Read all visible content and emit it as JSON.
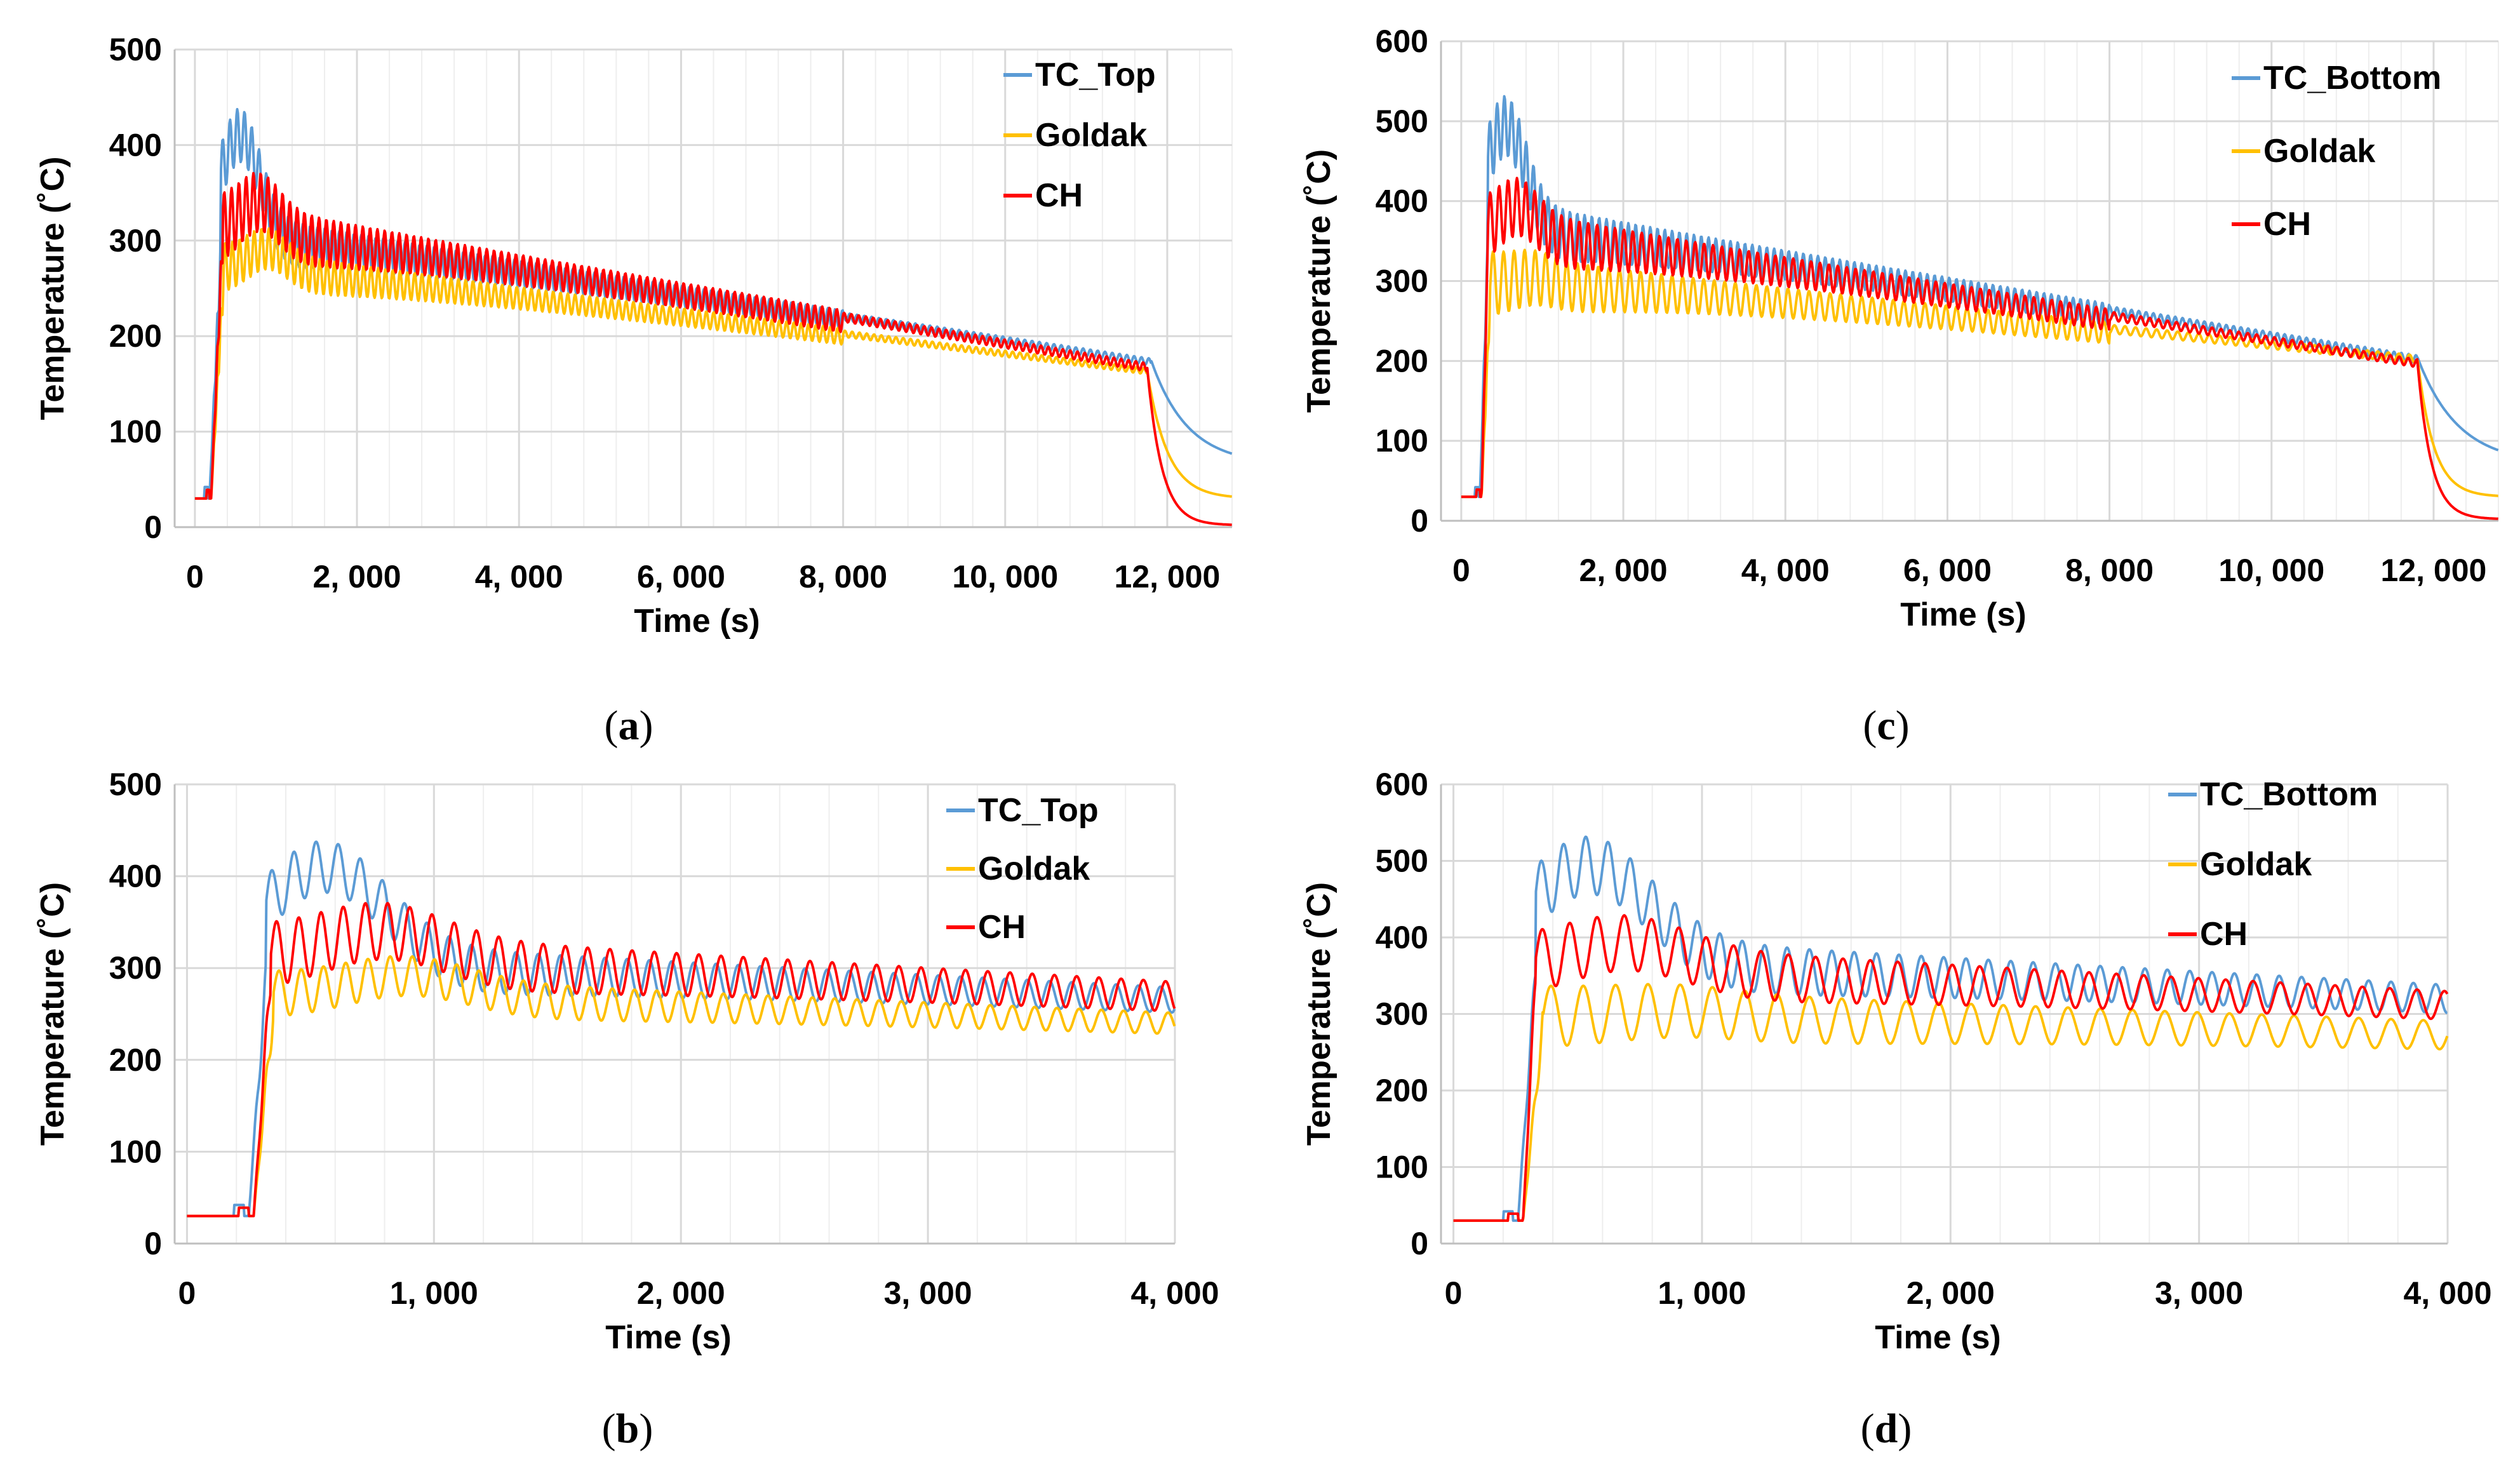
{
  "colors": {
    "tc": "#5b9bd5",
    "goldak": "#ffc000",
    "ch": "#ff0000",
    "grid": "#d9d9d9",
    "minor_grid": "#eeeeee"
  },
  "captions": [
    {
      "open": "(",
      "letter": "a",
      "close": ")"
    },
    {
      "open": "(",
      "letter": "c",
      "close": ")"
    },
    {
      "open": "(",
      "letter": "b",
      "close": ")"
    },
    {
      "open": "(",
      "letter": "d",
      "close": ")"
    }
  ],
  "chart_data": [
    {
      "id": "a",
      "type": "line",
      "xlabel": "Time (s)",
      "ylabel": "Temperature (˚C)",
      "xlim": [
        -250,
        12800
      ],
      "ylim": [
        0,
        500
      ],
      "xticks": [
        0,
        2000,
        4000,
        6000,
        8000,
        10000,
        12000
      ],
      "xtick_labels": [
        "0",
        "2, 000",
        "4, 000",
        "6, 000",
        "8, 000",
        "10, 000",
        "12, 000"
      ],
      "yticks": [
        0,
        100,
        200,
        300,
        400,
        500
      ],
      "ytick_labels": [
        "0",
        "100",
        "200",
        "300",
        "400",
        "500"
      ],
      "grid": true,
      "legend": "top-right",
      "series": [
        {
          "name": "TC_Top",
          "color_key": "tc",
          "profile": {
            "t0": 180,
            "base": 30,
            "peak": 430,
            "peak_t": 560,
            "ramp_end": 320,
            "plateau": 320,
            "end_t": 11800,
            "end_val": 175,
            "final": 65,
            "osc": 30,
            "period": 90,
            "tau": 450,
            "pre_bump": 40
          }
        },
        {
          "name": "Goldak",
          "color_key": "goldak",
          "profile": {
            "t0": 200,
            "base": 30,
            "peak": 310,
            "peak_t": 900,
            "ramp_end": 350,
            "plateau": 285,
            "end_t": 11750,
            "end_val": 165,
            "final": 30,
            "osc": 25,
            "period": 90,
            "tau": 250,
            "pre_bump": 30
          }
        },
        {
          "name": "CH",
          "color_key": "ch",
          "profile": {
            "t0": 200,
            "base": 30,
            "peak": 365,
            "peak_t": 800,
            "ramp_end": 340,
            "plateau": 330,
            "end_t": 11750,
            "end_val": 170,
            "final": 2,
            "osc": 35,
            "period": 90,
            "tau": 180,
            "pre_bump": 30
          }
        }
      ]
    },
    {
      "id": "c",
      "type": "line",
      "xlabel": "Time (s)",
      "ylabel": "Temperature (˚C)",
      "xlim": [
        -250,
        12800
      ],
      "ylim": [
        0,
        600
      ],
      "xticks": [
        0,
        2000,
        4000,
        6000,
        8000,
        10000,
        12000
      ],
      "xtick_labels": [
        "0",
        "2, 000",
        "4, 000",
        "6, 000",
        "8, 000",
        "10, 000",
        "12, 000"
      ],
      "yticks": [
        0,
        100,
        200,
        300,
        400,
        500,
        600
      ],
      "ytick_labels": [
        "0",
        "100",
        "200",
        "300",
        "400",
        "500",
        "600"
      ],
      "grid": true,
      "legend": "top-right",
      "series": [
        {
          "name": "TC_Bottom",
          "color_key": "tc",
          "profile": {
            "t0": 230,
            "base": 30,
            "peak": 520,
            "peak_t": 550,
            "ramp_end": 330,
            "plateau": 390,
            "end_t": 11800,
            "end_val": 205,
            "final": 70,
            "osc": 40,
            "period": 90,
            "tau": 500,
            "pre_bump": 40
          }
        },
        {
          "name": "Goldak",
          "color_key": "goldak",
          "profile": {
            "t0": 250,
            "base": 30,
            "peak": 330,
            "peak_t": 900,
            "ramp_end": 360,
            "plateau": 320,
            "end_t": 11800,
            "end_val": 205,
            "final": 30,
            "osc": 40,
            "period": 130,
            "tau": 200,
            "pre_bump": 30
          }
        },
        {
          "name": "CH",
          "color_key": "ch",
          "profile": {
            "t0": 250,
            "base": 30,
            "peak": 420,
            "peak_t": 700,
            "ramp_end": 330,
            "plateau": 380,
            "end_t": 11800,
            "end_val": 200,
            "final": 2,
            "osc": 40,
            "period": 110,
            "tau": 170,
            "pre_bump": 30
          }
        }
      ]
    },
    {
      "id": "b",
      "type": "line",
      "xlabel": "Time (s)",
      "ylabel": "Temperature (˚C)",
      "xlim": [
        -50,
        4000
      ],
      "ylim": [
        0,
        500
      ],
      "xticks": [
        0,
        1000,
        2000,
        3000,
        4000
      ],
      "xtick_labels": [
        "0",
        "1, 000",
        "2, 000",
        "3, 000",
        "4, 000"
      ],
      "yticks": [
        0,
        100,
        200,
        300,
        400,
        500
      ],
      "ytick_labels": [
        "0",
        "100",
        "200",
        "300",
        "400",
        "500"
      ],
      "grid": true,
      "legend": "top-right",
      "series": [
        {
          "name": "TC_Top",
          "color_key": "tc",
          "profile": {
            "t0": 250,
            "base": 30,
            "peak": 430,
            "peak_t": 560,
            "ramp_end": 320,
            "plateau": 320,
            "end_t": 11800,
            "end_val": 175,
            "final": 65,
            "osc": 30,
            "period": 90,
            "tau": 450,
            "pre_bump": 40
          }
        },
        {
          "name": "Goldak",
          "color_key": "goldak",
          "profile": {
            "t0": 270,
            "base": 30,
            "peak": 310,
            "peak_t": 900,
            "ramp_end": 350,
            "plateau": 285,
            "end_t": 11750,
            "end_val": 165,
            "final": 30,
            "osc": 25,
            "period": 90,
            "tau": 250,
            "pre_bump": 30
          }
        },
        {
          "name": "CH",
          "color_key": "ch",
          "profile": {
            "t0": 270,
            "base": 30,
            "peak": 365,
            "peak_t": 800,
            "ramp_end": 340,
            "plateau": 330,
            "end_t": 11750,
            "end_val": 170,
            "final": 2,
            "osc": 35,
            "period": 90,
            "tau": 180,
            "pre_bump": 30
          }
        }
      ]
    },
    {
      "id": "d",
      "type": "line",
      "xlabel": "Time (s)",
      "ylabel": "Temperature (˚C)",
      "xlim": [
        -50,
        4000
      ],
      "ylim": [
        0,
        600
      ],
      "xticks": [
        0,
        1000,
        2000,
        3000,
        4000
      ],
      "xtick_labels": [
        "0",
        "1, 000",
        "2, 000",
        "3, 000",
        "4, 000"
      ],
      "yticks": [
        0,
        100,
        200,
        300,
        400,
        500,
        600
      ],
      "ytick_labels": [
        "0",
        "100",
        "200",
        "300",
        "400",
        "500",
        "600"
      ],
      "grid": true,
      "legend": "top-right",
      "series": [
        {
          "name": "TC_Bottom",
          "color_key": "tc",
          "profile": {
            "t0": 260,
            "base": 30,
            "peak": 520,
            "peak_t": 550,
            "ramp_end": 330,
            "plateau": 390,
            "end_t": 11800,
            "end_val": 205,
            "final": 70,
            "osc": 40,
            "period": 90,
            "tau": 500,
            "pre_bump": 40
          }
        },
        {
          "name": "Goldak",
          "color_key": "goldak",
          "profile": {
            "t0": 280,
            "base": 30,
            "peak": 330,
            "peak_t": 900,
            "ramp_end": 360,
            "plateau": 320,
            "end_t": 11800,
            "end_val": 205,
            "final": 30,
            "osc": 40,
            "period": 130,
            "tau": 200,
            "pre_bump": 30
          }
        },
        {
          "name": "CH",
          "color_key": "ch",
          "profile": {
            "t0": 280,
            "base": 30,
            "peak": 420,
            "peak_t": 700,
            "ramp_end": 330,
            "plateau": 380,
            "end_t": 11800,
            "end_val": 200,
            "final": 2,
            "osc": 40,
            "period": 110,
            "tau": 170,
            "pre_bump": 30
          }
        }
      ]
    }
  ]
}
